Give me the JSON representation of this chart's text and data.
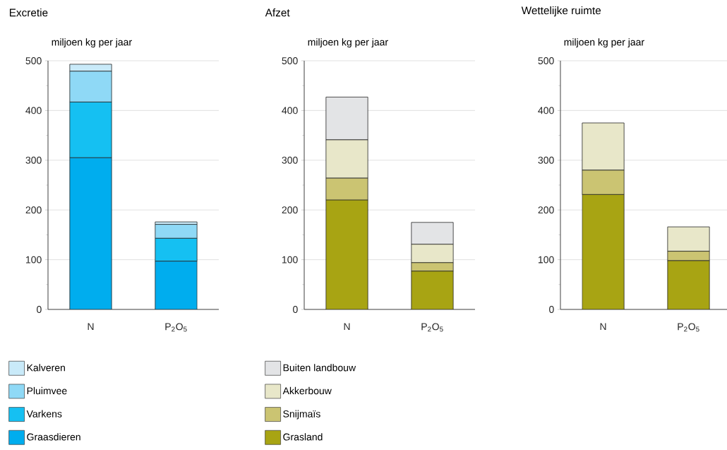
{
  "chart_data": [
    {
      "type": "bar",
      "title": "Excretie",
      "ylabel": "miljoen kg per jaar",
      "categories": [
        "N",
        "P$_{2}$O$_{5}$"
      ],
      "stacked": true,
      "ylim": [
        0,
        500
      ],
      "yticks": [
        0,
        100,
        200,
        300,
        400,
        500
      ],
      "grid": "y",
      "legend": "bottom",
      "series": [
        {
          "name": "Graasdieren",
          "color": "#00adee",
          "values": [
            305,
            97
          ]
        },
        {
          "name": "Varkens",
          "color": "#15c0f2",
          "values": [
            112,
            46
          ]
        },
        {
          "name": "Pluimvee",
          "color": "#8fd9f6",
          "values": [
            62,
            28
          ]
        },
        {
          "name": "Kalveren",
          "color": "#c9eaf9",
          "values": [
            14,
            5
          ]
        }
      ]
    },
    {
      "type": "bar",
      "title": "Afzet",
      "ylabel": "miljoen kg per jaar",
      "categories": [
        "N",
        "P$_{2}$O$_{5}$"
      ],
      "stacked": true,
      "ylim": [
        0,
        500
      ],
      "yticks": [
        0,
        100,
        200,
        300,
        400,
        500
      ],
      "grid": "y",
      "legend": "bottom",
      "series": [
        {
          "name": "Grasland",
          "color": "#a8a413",
          "values": [
            220,
            77
          ]
        },
        {
          "name": "Snijmaïs",
          "color": "#cbc472",
          "values": [
            44,
            17
          ]
        },
        {
          "name": "Akkerbouw",
          "color": "#e8e7c9",
          "values": [
            77,
            37
          ]
        },
        {
          "name": "Buiten landbouw",
          "color": "#e3e4e6",
          "values": [
            86,
            44
          ]
        }
      ]
    },
    {
      "type": "bar",
      "title": "Wettelijke ruimte",
      "ylabel": "miljoen kg per jaar",
      "categories": [
        "N",
        "P$_{2}$O$_{5}$"
      ],
      "stacked": true,
      "ylim": [
        0,
        500
      ],
      "yticks": [
        0,
        100,
        200,
        300,
        400,
        500
      ],
      "grid": "y",
      "series": [
        {
          "color": "#a8a413",
          "values": [
            231,
            98
          ]
        },
        {
          "color": "#cbc472",
          "values": [
            49,
            19
          ]
        },
        {
          "color": "#e8e7c9",
          "values": [
            95,
            49
          ]
        }
      ]
    }
  ]
}
